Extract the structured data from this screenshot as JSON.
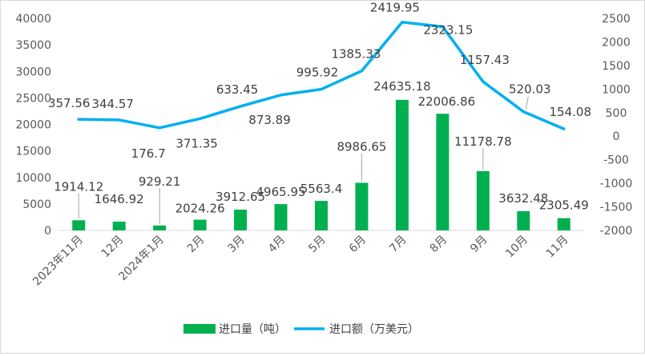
{
  "chart_data": {
    "type": "bar+line",
    "categories": [
      "2023年11月",
      "12月",
      "2024年1月",
      "2月",
      "3月",
      "4月",
      "5月",
      "6月",
      "7月",
      "8月",
      "9月",
      "10月",
      "11月"
    ],
    "series": [
      {
        "name": "进口量（吨）",
        "type": "bar",
        "axis": "left",
        "color": "#00b050",
        "values": [
          1914.12,
          1646.92,
          929.21,
          2024.26,
          3912.65,
          4965.95,
          5563.4,
          8986.65,
          24635.18,
          22006.86,
          11178.78,
          3632.48,
          2305.49
        ],
        "labels": [
          "1914.12",
          "1646.92",
          "929.21",
          "2024.26",
          "3912.65",
          "4965.95",
          "5563.4",
          "8986.65",
          "24635.18",
          "22006.86",
          "11178.78",
          "3632.48",
          "2305.49"
        ]
      },
      {
        "name": "进口额（万美元）",
        "type": "line",
        "axis": "right",
        "color": "#00b0f0",
        "values": [
          357.56,
          344.57,
          176.7,
          371.35,
          633.45,
          873.89,
          995.92,
          1385.33,
          2419.95,
          2323.15,
          1157.43,
          520.03,
          154.08
        ],
        "labels": [
          "357.56",
          "344.57",
          "176.7",
          "371.35",
          "633.45",
          "873.89",
          "995.92",
          "1385.33",
          "2419.95",
          "2323.15",
          "1157.43",
          "520.03",
          "154.08"
        ]
      }
    ],
    "y_left": {
      "min": 0,
      "max": 40000,
      "ticks": [
        "0",
        "5000",
        "10000",
        "15000",
        "20000",
        "25000",
        "30000",
        "35000",
        "40000"
      ]
    },
    "y_right": {
      "min": -2000,
      "max": 2500,
      "ticks": [
        "-2000",
        "-1500",
        "-1000",
        "-500",
        "0",
        "500",
        "1000",
        "1500",
        "2000",
        "2500"
      ]
    },
    "grid": false,
    "legend_position": "bottom"
  }
}
